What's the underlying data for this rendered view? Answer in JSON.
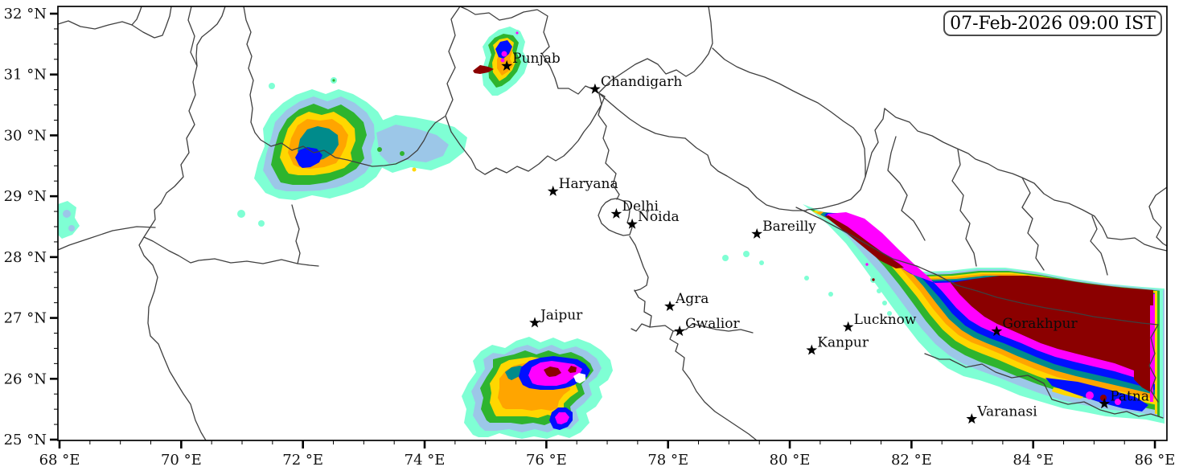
{
  "stamp": {
    "text": "07-Feb-2026 09:00 IST"
  },
  "axes": {
    "x": {
      "min": 68,
      "max": 86,
      "major_step": 2,
      "minor_step": 0.5,
      "unit_suffix": " °E"
    },
    "y": {
      "min": 25,
      "max": 32,
      "major_step": 1,
      "minor_step": 0.25,
      "unit_suffix": " °N"
    }
  },
  "cities": [
    {
      "name": "Punjab",
      "lon": 75.35,
      "lat": 31.14
    },
    {
      "name": "Chandigarh",
      "lon": 76.8,
      "lat": 30.76
    },
    {
      "name": "Haryana",
      "lon": 76.11,
      "lat": 29.08
    },
    {
      "name": "Delhi",
      "lon": 77.15,
      "lat": 28.71
    },
    {
      "name": "Noida",
      "lon": 77.41,
      "lat": 28.54
    },
    {
      "name": "Bareilly",
      "lon": 79.46,
      "lat": 28.38
    },
    {
      "name": "Agra",
      "lon": 78.03,
      "lat": 27.19
    },
    {
      "name": "Jaipur",
      "lon": 75.81,
      "lat": 26.92
    },
    {
      "name": "Gwalior",
      "lon": 78.19,
      "lat": 26.78
    },
    {
      "name": "Lucknow",
      "lon": 80.96,
      "lat": 26.85
    },
    {
      "name": "Kanpur",
      "lon": 80.36,
      "lat": 26.47
    },
    {
      "name": "Gorakhpur",
      "lon": 83.4,
      "lat": 26.78
    },
    {
      "name": "Varanasi",
      "lon": 82.99,
      "lat": 25.34
    },
    {
      "name": "Patna",
      "lon": 85.17,
      "lat": 25.59
    }
  ],
  "colormap": {
    "description": "rainfall intensity contour colors, lowest to highest",
    "levels": [
      "#7FFFD4",
      "#9CC7E8",
      "#2EB42E",
      "#FFD700",
      "#FFA500",
      "#008B8B",
      "#0010FF",
      "#FF00FF",
      "#8B0000"
    ],
    "hole_color": "#FFFFFF"
  },
  "boundary_color": "#3f3f3f",
  "frame_color": "#000000",
  "marker_color": "#000000",
  "text_color": "#111111"
}
